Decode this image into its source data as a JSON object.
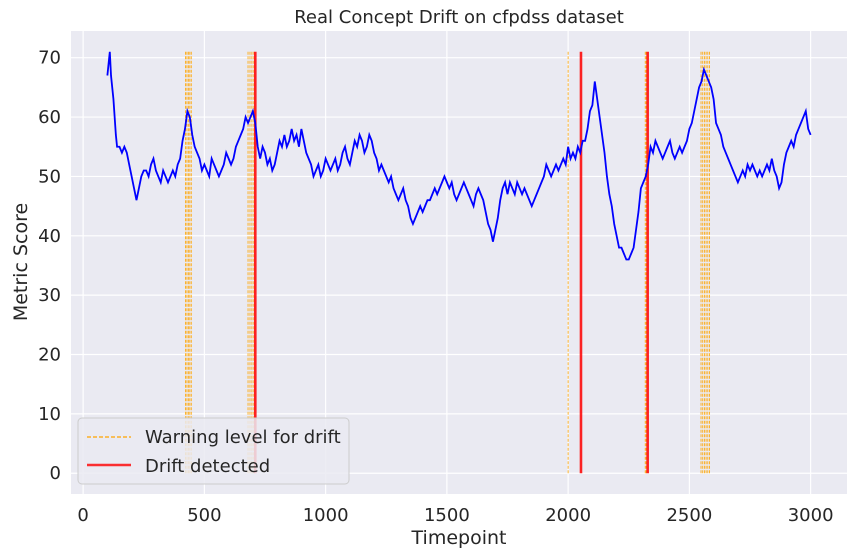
{
  "chart_data": {
    "type": "line",
    "title": "Real Concept Drift on cfpdss dataset",
    "xlabel": "Timepoint",
    "ylabel": "Metric Score",
    "xlim": [
      -50,
      3150
    ],
    "ylim": [
      -3.5,
      74.5
    ],
    "xticks": [
      0,
      500,
      1000,
      1500,
      2000,
      2500,
      3000
    ],
    "yticks": [
      0,
      10,
      20,
      30,
      40,
      50,
      60,
      70
    ],
    "grid": true,
    "background": "#eaeaf2",
    "legend": {
      "placement": "bottom-left",
      "entries": [
        {
          "label": "Warning level for drift",
          "color": "#ffa500",
          "style": "dashed"
        },
        {
          "label": "Drift detected",
          "color": "#ff0000",
          "style": "solid"
        }
      ]
    },
    "series": [
      {
        "color": "#0000ff",
        "points": [
          [
            100,
            67
          ],
          [
            105,
            69
          ],
          [
            110,
            71
          ],
          [
            115,
            67
          ],
          [
            120,
            65
          ],
          [
            125,
            63
          ],
          [
            130,
            60
          ],
          [
            135,
            57
          ],
          [
            140,
            55
          ],
          [
            150,
            55
          ],
          [
            160,
            54
          ],
          [
            170,
            55
          ],
          [
            180,
            54
          ],
          [
            190,
            52
          ],
          [
            200,
            50
          ],
          [
            210,
            48
          ],
          [
            220,
            46
          ],
          [
            230,
            48
          ],
          [
            240,
            50
          ],
          [
            250,
            51
          ],
          [
            260,
            51
          ],
          [
            270,
            50
          ],
          [
            280,
            52
          ],
          [
            290,
            53
          ],
          [
            300,
            51
          ],
          [
            310,
            50
          ],
          [
            320,
            49
          ],
          [
            330,
            51
          ],
          [
            340,
            50
          ],
          [
            350,
            49
          ],
          [
            360,
            50
          ],
          [
            370,
            51
          ],
          [
            380,
            50
          ],
          [
            390,
            52
          ],
          [
            400,
            53
          ],
          [
            410,
            56
          ],
          [
            420,
            58
          ],
          [
            430,
            61
          ],
          [
            440,
            60
          ],
          [
            450,
            57
          ],
          [
            460,
            55
          ],
          [
            470,
            54
          ],
          [
            480,
            53
          ],
          [
            490,
            51
          ],
          [
            500,
            52
          ],
          [
            510,
            51
          ],
          [
            520,
            50
          ],
          [
            530,
            53
          ],
          [
            540,
            52
          ],
          [
            550,
            51
          ],
          [
            560,
            50
          ],
          [
            570,
            51
          ],
          [
            580,
            52
          ],
          [
            590,
            54
          ],
          [
            600,
            53
          ],
          [
            610,
            52
          ],
          [
            620,
            53
          ],
          [
            630,
            55
          ],
          [
            640,
            56
          ],
          [
            650,
            57
          ],
          [
            660,
            58
          ],
          [
            670,
            60
          ],
          [
            680,
            59
          ],
          [
            690,
            60
          ],
          [
            700,
            61
          ],
          [
            710,
            59
          ],
          [
            720,
            55
          ],
          [
            730,
            53
          ],
          [
            740,
            55
          ],
          [
            750,
            54
          ],
          [
            760,
            52
          ],
          [
            770,
            53
          ],
          [
            780,
            51
          ],
          [
            790,
            52
          ],
          [
            800,
            54
          ],
          [
            810,
            56
          ],
          [
            820,
            55
          ],
          [
            830,
            57
          ],
          [
            840,
            55
          ],
          [
            850,
            56
          ],
          [
            860,
            58
          ],
          [
            870,
            56
          ],
          [
            880,
            57
          ],
          [
            890,
            55
          ],
          [
            900,
            58
          ],
          [
            910,
            56
          ],
          [
            920,
            54
          ],
          [
            930,
            53
          ],
          [
            940,
            52
          ],
          [
            950,
            50
          ],
          [
            960,
            51
          ],
          [
            970,
            52
          ],
          [
            980,
            50
          ],
          [
            990,
            51
          ],
          [
            1000,
            53
          ],
          [
            1010,
            52
          ],
          [
            1020,
            51
          ],
          [
            1030,
            52
          ],
          [
            1040,
            53
          ],
          [
            1050,
            51
          ],
          [
            1060,
            52
          ],
          [
            1070,
            54
          ],
          [
            1080,
            55
          ],
          [
            1090,
            53
          ],
          [
            1100,
            52
          ],
          [
            1110,
            54
          ],
          [
            1120,
            56
          ],
          [
            1130,
            55
          ],
          [
            1140,
            57
          ],
          [
            1150,
            56
          ],
          [
            1160,
            54
          ],
          [
            1170,
            55
          ],
          [
            1180,
            57
          ],
          [
            1190,
            56
          ],
          [
            1200,
            54
          ],
          [
            1210,
            53
          ],
          [
            1220,
            51
          ],
          [
            1230,
            52
          ],
          [
            1240,
            51
          ],
          [
            1250,
            50
          ],
          [
            1260,
            49
          ],
          [
            1270,
            50
          ],
          [
            1280,
            48
          ],
          [
            1290,
            47
          ],
          [
            1300,
            46
          ],
          [
            1310,
            47
          ],
          [
            1320,
            48
          ],
          [
            1330,
            46
          ],
          [
            1340,
            45
          ],
          [
            1350,
            43
          ],
          [
            1360,
            42
          ],
          [
            1370,
            43
          ],
          [
            1380,
            44
          ],
          [
            1390,
            45
          ],
          [
            1400,
            44
          ],
          [
            1410,
            45
          ],
          [
            1420,
            46
          ],
          [
            1430,
            46
          ],
          [
            1440,
            47
          ],
          [
            1450,
            48
          ],
          [
            1460,
            47
          ],
          [
            1470,
            48
          ],
          [
            1480,
            49
          ],
          [
            1490,
            50
          ],
          [
            1500,
            49
          ],
          [
            1510,
            48
          ],
          [
            1520,
            49
          ],
          [
            1530,
            47
          ],
          [
            1540,
            46
          ],
          [
            1550,
            47
          ],
          [
            1560,
            48
          ],
          [
            1570,
            49
          ],
          [
            1580,
            48
          ],
          [
            1590,
            47
          ],
          [
            1600,
            46
          ],
          [
            1610,
            45
          ],
          [
            1620,
            47
          ],
          [
            1630,
            48
          ],
          [
            1640,
            47
          ],
          [
            1650,
            46
          ],
          [
            1660,
            44
          ],
          [
            1670,
            42
          ],
          [
            1680,
            41
          ],
          [
            1690,
            39
          ],
          [
            1700,
            41
          ],
          [
            1710,
            43
          ],
          [
            1720,
            46
          ],
          [
            1730,
            48
          ],
          [
            1740,
            49
          ],
          [
            1750,
            47
          ],
          [
            1760,
            49
          ],
          [
            1770,
            48
          ],
          [
            1780,
            47
          ],
          [
            1790,
            49
          ],
          [
            1800,
            48
          ],
          [
            1810,
            47
          ],
          [
            1820,
            48
          ],
          [
            1830,
            47
          ],
          [
            1840,
            46
          ],
          [
            1850,
            45
          ],
          [
            1860,
            46
          ],
          [
            1870,
            47
          ],
          [
            1880,
            48
          ],
          [
            1890,
            49
          ],
          [
            1900,
            50
          ],
          [
            1910,
            52
          ],
          [
            1920,
            51
          ],
          [
            1930,
            50
          ],
          [
            1940,
            51
          ],
          [
            1950,
            52
          ],
          [
            1960,
            51
          ],
          [
            1970,
            52
          ],
          [
            1980,
            53
          ],
          [
            1990,
            52
          ],
          [
            2000,
            55
          ],
          [
            2010,
            53
          ],
          [
            2020,
            54
          ],
          [
            2030,
            53
          ],
          [
            2040,
            55
          ],
          [
            2050,
            54
          ],
          [
            2060,
            56
          ],
          [
            2070,
            56
          ],
          [
            2080,
            58
          ],
          [
            2090,
            61
          ],
          [
            2100,
            62
          ],
          [
            2110,
            66
          ],
          [
            2120,
            63
          ],
          [
            2130,
            60
          ],
          [
            2140,
            57
          ],
          [
            2150,
            54
          ],
          [
            2160,
            50
          ],
          [
            2170,
            47
          ],
          [
            2180,
            45
          ],
          [
            2190,
            42
          ],
          [
            2200,
            40
          ],
          [
            2210,
            38
          ],
          [
            2220,
            38
          ],
          [
            2230,
            37
          ],
          [
            2240,
            36
          ],
          [
            2250,
            36
          ],
          [
            2260,
            37
          ],
          [
            2270,
            38
          ],
          [
            2280,
            41
          ],
          [
            2290,
            44
          ],
          [
            2300,
            48
          ],
          [
            2310,
            49
          ],
          [
            2320,
            50
          ],
          [
            2330,
            52
          ],
          [
            2340,
            55
          ],
          [
            2350,
            54
          ],
          [
            2360,
            56
          ],
          [
            2370,
            55
          ],
          [
            2380,
            54
          ],
          [
            2390,
            53
          ],
          [
            2400,
            54
          ],
          [
            2410,
            55
          ],
          [
            2420,
            56
          ],
          [
            2430,
            54
          ],
          [
            2440,
            53
          ],
          [
            2450,
            54
          ],
          [
            2460,
            55
          ],
          [
            2470,
            54
          ],
          [
            2480,
            55
          ],
          [
            2490,
            56
          ],
          [
            2500,
            58
          ],
          [
            2510,
            59
          ],
          [
            2520,
            61
          ],
          [
            2530,
            63
          ],
          [
            2540,
            65
          ],
          [
            2550,
            66
          ],
          [
            2560,
            68
          ],
          [
            2570,
            67
          ],
          [
            2580,
            66
          ],
          [
            2590,
            65
          ],
          [
            2600,
            63
          ],
          [
            2610,
            59
          ],
          [
            2620,
            58
          ],
          [
            2630,
            57
          ],
          [
            2640,
            55
          ],
          [
            2650,
            54
          ],
          [
            2660,
            53
          ],
          [
            2670,
            52
          ],
          [
            2680,
            51
          ],
          [
            2690,
            50
          ],
          [
            2700,
            49
          ],
          [
            2710,
            50
          ],
          [
            2720,
            51
          ],
          [
            2730,
            50
          ],
          [
            2740,
            52
          ],
          [
            2750,
            51
          ],
          [
            2760,
            52
          ],
          [
            2770,
            51
          ],
          [
            2780,
            50
          ],
          [
            2790,
            51
          ],
          [
            2800,
            50
          ],
          [
            2810,
            51
          ],
          [
            2820,
            52
          ],
          [
            2830,
            51
          ],
          [
            2840,
            53
          ],
          [
            2850,
            51
          ],
          [
            2860,
            50
          ],
          [
            2870,
            48
          ],
          [
            2880,
            49
          ],
          [
            2890,
            52
          ],
          [
            2900,
            54
          ],
          [
            2910,
            55
          ],
          [
            2920,
            56
          ],
          [
            2930,
            55
          ],
          [
            2940,
            57
          ],
          [
            2950,
            58
          ],
          [
            2960,
            59
          ],
          [
            2970,
            60
          ],
          [
            2980,
            61
          ],
          [
            2990,
            58
          ],
          [
            3000,
            57
          ]
        ]
      }
    ],
    "warning_lines": [
      422,
      428,
      434,
      440,
      446,
      680,
      688,
      696,
      704,
      2000,
      2318,
      2322,
      2548,
      2555,
      2562,
      2569,
      2576,
      2583
    ],
    "drift_lines": [
      710,
      2053,
      2328
    ],
    "vline_range": [
      0,
      71
    ]
  }
}
